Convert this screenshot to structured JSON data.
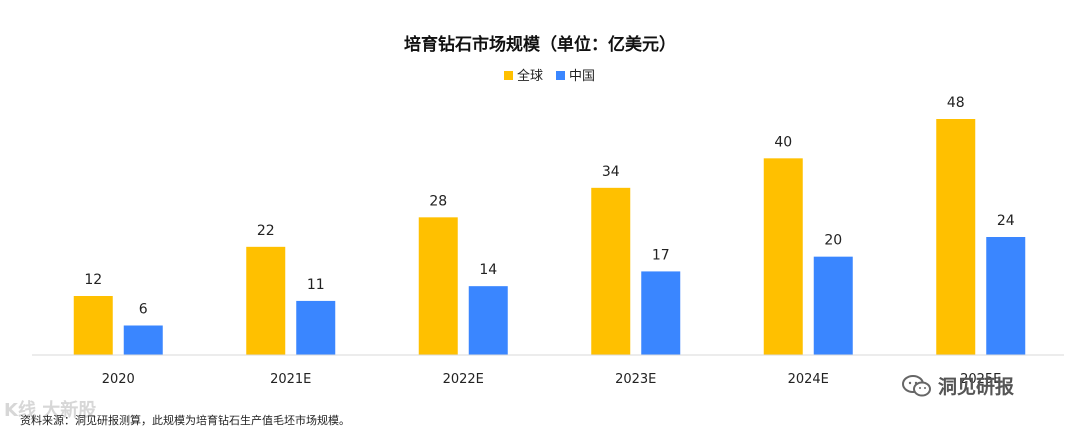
{
  "chart_data": {
    "type": "bar",
    "title": "培育钻石市场规模（单位：亿美元）",
    "categories": [
      "2020",
      "2021E",
      "2022E",
      "2023E",
      "2024E",
      "2025E"
    ],
    "series": [
      {
        "name": "全球",
        "values": [
          12,
          22,
          28,
          34,
          40,
          48
        ],
        "color": "#FFC000"
      },
      {
        "name": "中国",
        "values": [
          6,
          11,
          14,
          17,
          20,
          24
        ],
        "color": "#3A86FF"
      }
    ],
    "ylim": [
      0,
      60
    ],
    "grid": false,
    "legend": "top-center",
    "xlabel": "",
    "ylabel": ""
  },
  "footer": {
    "source": "资料来源：洞见研报测算，此规模为培育钻石生产值毛坯市场规模。"
  },
  "watermarks": {
    "left_brand": "K线 大新股",
    "right_brand": "洞见研报",
    "icon": "wechat-icon"
  }
}
